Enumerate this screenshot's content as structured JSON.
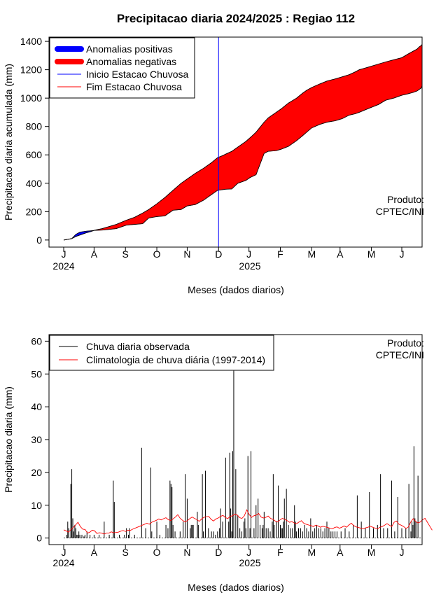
{
  "chart_data": [
    {
      "type": "area",
      "title": "Precipitacao diaria 2024/2025 : Regiao 112",
      "xlabel": "Meses (dados diarios)",
      "ylabel": "Precipitacao diaria acumulada (mm)",
      "ylim": [
        -50,
        1430
      ],
      "yticks": [
        "0",
        "200",
        "400",
        "600",
        "800",
        "1000",
        "1200",
        "1400"
      ],
      "month_ticks": [
        "J",
        "A",
        "S",
        "O",
        "N",
        "D",
        "J",
        "F",
        "M",
        "A",
        "M",
        "J"
      ],
      "year_labels": [
        "2024",
        "2025"
      ],
      "x_days": [
        0,
        4,
        8,
        12,
        16,
        22,
        27,
        31,
        38,
        45,
        52,
        62,
        70,
        78,
        84,
        92,
        100,
        108,
        116,
        122,
        130,
        138,
        146,
        152,
        157,
        160,
        166,
        172,
        180,
        184,
        190,
        198,
        202,
        210,
        215,
        222,
        230,
        236,
        240,
        245,
        253,
        260,
        268,
        275,
        282,
        288,
        292,
        297,
        304,
        311,
        318,
        326,
        334,
        340,
        345,
        349,
        351,
        353,
        354
      ],
      "observed_cum": [
        0,
        5,
        10,
        40,
        55,
        62,
        65,
        68,
        70,
        75,
        80,
        105,
        110,
        115,
        155,
        165,
        170,
        210,
        215,
        240,
        250,
        280,
        320,
        350,
        355,
        358,
        360,
        400,
        420,
        440,
        460,
        610,
        625,
        630,
        640,
        660,
        700,
        735,
        760,
        790,
        815,
        830,
        840,
        855,
        880,
        890,
        900,
        915,
        935,
        955,
        985,
        1000,
        1020,
        1030,
        1040,
        1050,
        1060,
        1070,
        1085
      ],
      "climatology_cum": [
        0,
        5,
        10,
        25,
        35,
        50,
        60,
        70,
        80,
        95,
        110,
        140,
        160,
        190,
        215,
        255,
        300,
        350,
        400,
        430,
        470,
        505,
        545,
        580,
        595,
        605,
        625,
        655,
        695,
        720,
        760,
        830,
        860,
        900,
        925,
        965,
        1000,
        1035,
        1055,
        1075,
        1100,
        1120,
        1135,
        1150,
        1165,
        1185,
        1200,
        1210,
        1225,
        1240,
        1255,
        1270,
        1285,
        1310,
        1330,
        1345,
        1360,
        1370,
        1378
      ],
      "rainy_season_start_day": 153,
      "legend": {
        "position": "top-left",
        "entries": [
          "Anomalias positivas",
          "Anomalias negativas",
          "Inicio Estacao Chuvosa",
          "Fim Estacao Chuvosa"
        ]
      },
      "colors": {
        "positive": "#0000ff",
        "negative": "#ff0000",
        "start_line": "#0000ff",
        "end_line": "#ff0000"
      },
      "annotation": [
        "Produto:",
        "CPTEC/INI"
      ]
    },
    {
      "type": "bar",
      "xlabel": "Meses (dados diarios)",
      "ylabel": "Precipitacao diaria (mm)",
      "ylim": [
        -2,
        62
      ],
      "yticks": [
        "0",
        "10",
        "20",
        "30",
        "40",
        "50",
        "60"
      ],
      "month_ticks": [
        "J",
        "A",
        "S",
        "O",
        "N",
        "D",
        "J",
        "F",
        "M",
        "A",
        "M",
        "J"
      ],
      "year_labels": [
        "2024",
        "2025"
      ],
      "series_names": [
        "Chuva diaria observada",
        "Climatologia de chuva diária (1997-2014)"
      ],
      "rain_days": [
        3,
        4,
        5,
        7,
        8,
        9,
        10,
        11,
        12,
        13,
        14,
        15,
        16,
        18,
        20,
        21,
        23,
        26,
        30,
        35,
        40,
        45,
        49,
        50,
        55,
        60,
        62,
        64,
        65,
        70,
        77,
        81,
        86,
        87,
        92,
        95,
        101,
        103,
        105,
        106,
        107,
        108,
        110,
        115,
        118,
        120,
        122,
        125,
        126,
        127,
        128,
        132,
        133,
        137,
        138,
        140,
        143,
        146,
        148,
        150,
        152,
        154,
        155,
        157,
        160,
        163,
        164,
        165,
        166,
        167,
        168,
        170,
        172,
        174,
        176,
        178,
        179,
        180,
        182,
        184,
        185,
        188,
        190,
        192,
        194,
        196,
        197,
        198,
        200,
        202,
        204,
        206,
        207,
        208,
        210,
        212,
        214,
        215,
        216,
        217,
        218,
        220,
        222,
        224,
        226,
        228,
        229,
        230,
        232,
        234,
        236,
        238,
        240,
        242,
        244,
        246,
        248,
        250,
        252,
        254,
        256,
        258,
        260,
        262,
        264,
        266,
        268,
        270,
        274,
        278,
        282,
        286,
        290,
        294,
        298,
        302,
        306,
        310,
        313,
        316,
        320,
        324,
        327,
        330,
        334,
        338,
        341,
        343,
        344,
        345,
        346,
        347,
        348,
        350
      ],
      "rain_values": [
        1,
        5,
        3,
        16.5,
        21,
        6,
        2,
        4,
        3,
        1,
        1,
        2,
        1,
        1,
        0.5,
        1,
        2,
        1,
        1,
        1,
        5,
        1,
        17.5,
        11,
        1,
        1,
        3,
        1,
        3,
        1,
        27.5,
        3,
        21.5,
        2,
        5,
        1,
        4,
        3,
        17.5,
        16.5,
        15.5,
        4,
        2,
        2,
        5,
        19.5,
        12,
        3,
        4,
        4,
        4,
        8,
        4,
        19.5,
        2,
        20.5,
        3,
        2,
        2,
        1,
        2,
        3,
        9,
        5,
        24.5,
        5,
        26,
        9,
        2,
        26.5,
        51,
        21,
        7,
        3,
        2,
        5,
        6,
        3,
        25,
        3,
        26.5,
        3,
        10,
        12,
        4,
        3,
        4,
        8,
        3,
        3,
        2,
        5,
        19.5,
        4,
        5,
        16,
        4,
        3,
        3,
        5,
        12,
        15,
        4,
        3,
        3,
        10,
        5,
        2,
        3,
        3,
        2,
        4,
        3,
        2,
        6,
        2,
        3,
        4,
        3,
        3,
        2,
        3,
        5,
        3,
        2,
        2,
        2,
        2,
        2,
        3,
        2,
        4,
        13,
        5,
        3,
        14,
        3,
        4,
        19.5,
        3,
        3,
        17.5,
        2,
        12.5,
        3,
        3,
        16.5,
        2,
        5,
        4,
        28,
        6,
        5,
        19,
        4,
        6,
        2
      ],
      "climatology_daily": [
        2.5,
        2.2,
        1.8,
        2.5,
        3.2,
        4,
        4.8,
        3.5,
        2.7,
        2.6,
        1.5,
        1.8,
        2.4,
        2.2,
        1.4,
        1.6,
        1.5,
        1.2,
        1.5,
        1.5,
        1.9,
        1.6,
        1.7,
        1.8,
        2.1,
        2.3,
        2.0,
        2.4,
        2.3,
        2.7,
        3.0,
        3.3,
        3.6,
        3.9,
        4.2,
        4.5,
        4.2,
        4.8,
        5.1,
        5.4,
        5.8,
        5.5,
        5.9,
        6.2,
        5.6,
        5.3,
        5.8,
        6.4,
        7.1,
        6.0,
        5.4,
        4.9,
        5.3,
        5.9,
        6.4,
        6.0,
        5.6,
        5.1,
        5.8,
        6.3,
        6.5,
        6.6,
        5.7,
        5.2,
        5.8,
        6.1,
        6.6,
        6.9,
        6.3,
        5.9,
        6.6,
        6.8,
        7.3,
        7.0,
        6.2,
        6.0,
        6.8,
        8.6,
        7.2,
        6.3,
        6.8,
        7.0,
        7.5,
        6.4,
        6.1,
        6.3,
        6.7,
        6.0,
        5.7,
        5.2,
        4.9,
        5.5,
        6.0,
        5.7,
        5.3,
        4.8,
        5.0,
        4.6,
        4.4,
        4.9,
        5.3,
        4.5,
        4.2,
        4.0,
        3.8,
        3.5,
        3.9,
        3.7,
        3.3,
        3.6,
        3.4,
        3.2,
        3.0,
        2.8,
        3.2,
        3.4,
        3.0,
        3.3,
        3.7,
        3.3,
        4.0,
        4.5,
        3.8,
        3.4,
        3.2,
        3.0,
        2.8,
        3.1,
        3.3,
        3.6,
        3.3,
        3.0,
        2.8,
        3.3,
        3.5,
        3.9,
        4.4,
        3.9,
        3.5,
        4.8,
        5.2,
        4.2,
        3.9,
        3.5,
        2.9,
        3.4,
        4.9,
        5.9,
        5.1,
        4.6,
        4.9,
        5.6,
        6.0,
        4.8,
        3.6,
        2.4
      ]
    }
  ]
}
